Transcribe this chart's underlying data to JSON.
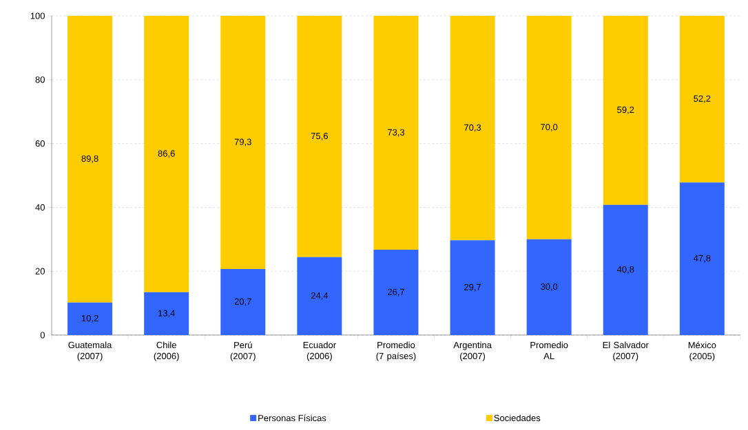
{
  "chart_data": {
    "type": "bar",
    "stacked": true,
    "categories": [
      "Guatemala (2007)",
      "Chile (2006)",
      "Perú (2007)",
      "Ecuador (2006)",
      "Promedio (7 países)",
      "Argentina (2007)",
      "Promedio AL",
      "El Salvador (2007)",
      "México (2005)"
    ],
    "series": [
      {
        "name": "Personas Físicas",
        "color": "#3366ff",
        "values": [
          10.2,
          13.4,
          20.7,
          24.4,
          26.7,
          29.7,
          30.0,
          40.8,
          47.8
        ],
        "value_labels": [
          "10,2",
          "13,4",
          "20,7",
          "24,4",
          "26,7",
          "29,7",
          "30,0",
          "40,8",
          "47,8"
        ]
      },
      {
        "name": "Sociedades",
        "color": "#ffcc00",
        "values": [
          89.8,
          86.6,
          79.3,
          75.6,
          73.3,
          70.3,
          70.0,
          59.2,
          52.2
        ],
        "value_labels": [
          "89,8",
          "86,6",
          "79,3",
          "75,6",
          "73,3",
          "70,3",
          "70,0",
          "59,2",
          "52,2"
        ]
      }
    ],
    "ylim": [
      0,
      100
    ],
    "yticks": [
      0,
      20,
      40,
      60,
      80,
      100
    ],
    "grid": "y",
    "legend": "bottom"
  }
}
